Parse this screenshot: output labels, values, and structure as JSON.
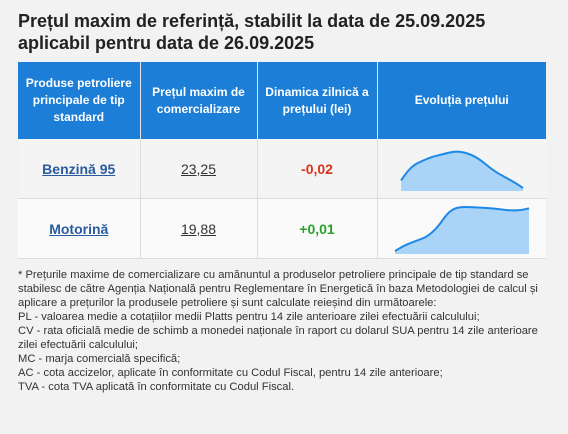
{
  "title": "Prețul maxim de referință, stabilit la data de 25.09.2025 aplicabil pentru data de 26.09.2025",
  "table": {
    "headers": [
      "Produse petroliere principale de tip standard",
      "Prețul maxim de comercializare",
      "Dinamica zilnică a prețului (lei)",
      "Evoluția prețului"
    ],
    "rows": [
      {
        "product": "Benzină 95",
        "price": "23,25",
        "change": "-0,02",
        "trend": "down"
      },
      {
        "product": "Motorină",
        "price": "19,88",
        "change": "+0,01",
        "trend": "up"
      }
    ]
  },
  "chart_data": [
    {
      "type": "area",
      "title": "",
      "xlabel": "",
      "ylabel": "",
      "series": [
        {
          "values": [
            0.2,
            0.45,
            0.62,
            0.7,
            0.78,
            0.84,
            0.88,
            0.93,
            0.96,
            0.95,
            0.9,
            0.82,
            0.7,
            0.55,
            0.42,
            0.32,
            0.22,
            0.12,
            0.0
          ]
        }
      ]
    },
    {
      "type": "area",
      "title": "",
      "xlabel": "",
      "ylabel": "",
      "series": [
        {
          "values": [
            0.0,
            0.1,
            0.18,
            0.24,
            0.3,
            0.42,
            0.6,
            0.85,
            0.97,
            1.0,
            1.0,
            0.99,
            0.98,
            0.97,
            0.95,
            0.93,
            0.92,
            0.93,
            0.97
          ]
        }
      ]
    }
  ],
  "colors": {
    "header_bg": "#1c7ed6",
    "spark_line": "#1e88e5",
    "spark_fill": "#a9d4f7",
    "negative": "#d9331b",
    "positive": "#2aa02a"
  },
  "notes": [
    "* Prețurile maxime de comercializare cu amănuntul a produselor petroliere principale de tip standard se stabilesc de către Agenția Națională pentru Reglementare în Energetică în baza Metodologiei de calcul și aplicare a prețurilor la produsele petroliere și sunt calculate reieșind din următoarele:",
    "PL - valoarea medie a cotațiilor medii Platts pentru 14 zile anterioare zilei efectuării calculului;",
    "CV - rata oficială medie de schimb a monedei naționale în raport cu dolarul SUA pentru 14 zile anterioare zilei efectuării calculului;",
    "MC - marja comercială specifică;",
    "AC - cota accizelor, aplicate în conformitate cu Codul Fiscal, pentru 14 zile anterioare;",
    "TVA - cota TVA aplicată în conformitate cu Codul Fiscal."
  ]
}
